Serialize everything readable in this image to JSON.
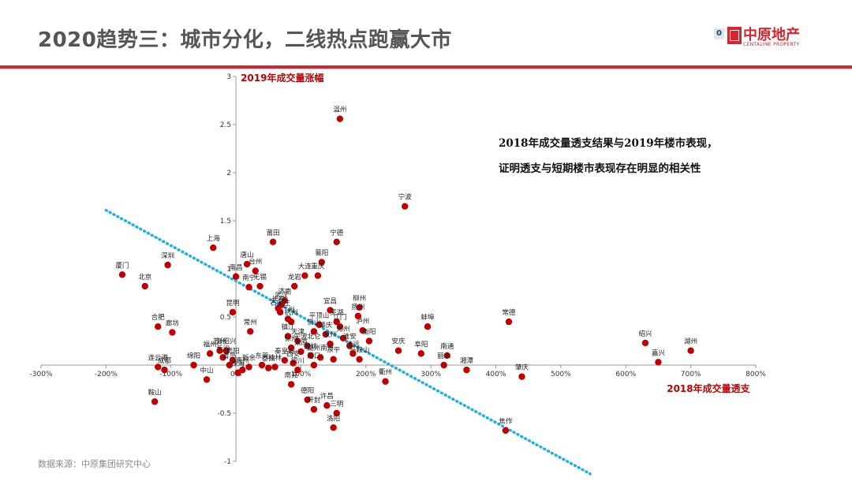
{
  "page": {
    "title": "2020趋势三：城市分化，二线热点跑赢大市",
    "annotation_line1": "2018年成交量透支结果与2019年楼市表现，",
    "annotation_line2": "证明透支与短期楼市表现存在明显的相关性",
    "source": "数据来源：中原集团研究中心"
  },
  "logo": {
    "mark": "0",
    "name_cn": "中原地产",
    "name_en": "CENTALINE PROPERTY"
  },
  "colors": {
    "accent_red": "#d9232d",
    "point": "#c00000",
    "trend": "#1fb0e6",
    "axis_title": "#c00000"
  },
  "chart_data": {
    "type": "scatter",
    "xlabel": "2018年成交量透支",
    "ylabel": "2019年成交量涨幅",
    "x_unit": "%",
    "xlim": [
      -300,
      800
    ],
    "ylim": [
      -1,
      3
    ],
    "x_ticks": [
      -300,
      -200,
      -100,
      0,
      100,
      200,
      300,
      400,
      500,
      600,
      700,
      800
    ],
    "y_ticks": [
      -1,
      -0.5,
      0,
      0.5,
      1,
      1.5,
      2,
      2.5,
      3
    ],
    "x_tick_labels": [
      "-300%",
      "-200%",
      "-100%",
      "0%",
      "100%",
      "200%",
      "300%",
      "400%",
      "500%",
      "600%",
      "700%",
      "800%"
    ],
    "y_tick_labels": [
      "-1",
      "-0.5",
      "0",
      "0.5",
      "1",
      "1.5",
      "2",
      "2.5",
      "3"
    ],
    "trendline": {
      "x": [
        -200,
        545
      ],
      "y": [
        1.61,
        -1.13
      ],
      "style": "dotted"
    },
    "points": [
      {
        "x": 160,
        "y": 2.56,
        "label": "温州"
      },
      {
        "x": 260,
        "y": 1.65,
        "label": "宁波"
      },
      {
        "x": 155,
        "y": 1.28,
        "label": "宁德"
      },
      {
        "x": 57,
        "y": 1.28,
        "label": "莆田"
      },
      {
        "x": 17,
        "y": 1.05,
        "label": "唐山"
      },
      {
        "x": 30,
        "y": 0.98,
        "label": "台州"
      },
      {
        "x": 132,
        "y": 1.07,
        "label": "襄阳"
      },
      {
        "x": 126,
        "y": 0.93,
        "label": "重庆"
      },
      {
        "x": 106,
        "y": 0.93,
        "label": "大连"
      },
      {
        "x": 90,
        "y": 0.82,
        "label": "龙岩"
      },
      {
        "x": 37,
        "y": 0.82,
        "label": "无锡"
      },
      {
        "x": 20,
        "y": 0.81,
        "label": "南宁"
      },
      {
        "x": 0,
        "y": 0.92,
        "label": "南昌"
      },
      {
        "x": -35,
        "y": 1.22,
        "label": "上海"
      },
      {
        "x": -105,
        "y": 1.04,
        "label": "深圳"
      },
      {
        "x": -175,
        "y": 0.94,
        "label": "厦门"
      },
      {
        "x": -140,
        "y": 0.82,
        "label": "北京"
      },
      {
        "x": -5,
        "y": 0.55,
        "label": "昆明"
      },
      {
        "x": -120,
        "y": 0.4,
        "label": "合肥"
      },
      {
        "x": -98,
        "y": 0.34,
        "label": "廊坊"
      },
      {
        "x": 22,
        "y": 0.35,
        "label": "常州"
      },
      {
        "x": 75,
        "y": 0.67,
        "label": "济南"
      },
      {
        "x": 70,
        "y": 0.63,
        "label": "武汉"
      },
      {
        "x": 65,
        "y": 0.59,
        "label": "长春"
      },
      {
        "x": 68,
        "y": 0.55,
        "label": "石家庄"
      },
      {
        "x": 80,
        "y": 0.48,
        "label": "广州"
      },
      {
        "x": 85,
        "y": 0.45,
        "label": "杭州"
      },
      {
        "x": 145,
        "y": 0.57,
        "label": "宜昌"
      },
      {
        "x": 190,
        "y": 0.6,
        "label": "柳州"
      },
      {
        "x": 188,
        "y": 0.51,
        "label": "扬州"
      },
      {
        "x": 155,
        "y": 0.45,
        "label": "芜湖"
      },
      {
        "x": 195,
        "y": 0.36,
        "label": "泸州"
      },
      {
        "x": 128,
        "y": 0.42,
        "label": "平顶山"
      },
      {
        "x": 160,
        "y": 0.4,
        "label": "江门"
      },
      {
        "x": 120,
        "y": 0.35,
        "label": "佛山"
      },
      {
        "x": 138,
        "y": 0.32,
        "label": "肇庆"
      },
      {
        "x": 165,
        "y": 0.28,
        "label": "郑州"
      },
      {
        "x": 145,
        "y": 0.22,
        "label": "泉州"
      },
      {
        "x": 80,
        "y": 0.3,
        "label": "镇江"
      },
      {
        "x": 95,
        "y": 0.25,
        "label": "天津"
      },
      {
        "x": 110,
        "y": 0.2,
        "label": "宁波北仑"
      },
      {
        "x": 85,
        "y": 0.18,
        "label": "徐州"
      },
      {
        "x": 100,
        "y": 0.14,
        "label": "太原"
      },
      {
        "x": 115,
        "y": 0.1,
        "label": "潍坊"
      },
      {
        "x": 130,
        "y": 0.08,
        "label": "湖州南浔"
      },
      {
        "x": 175,
        "y": 0.2,
        "label": "淮安"
      },
      {
        "x": 180,
        "y": 0.12,
        "label": "清远"
      },
      {
        "x": 190,
        "y": 0.06,
        "label": "马鞍山"
      },
      {
        "x": 205,
        "y": 0.25,
        "label": "衡阳"
      },
      {
        "x": 150,
        "y": 0.06,
        "label": "东平"
      },
      {
        "x": 120,
        "y": 0.0,
        "label": "海口"
      },
      {
        "x": 75,
        "y": 0.05,
        "label": "秦皇岛"
      },
      {
        "x": 60,
        "y": -0.02,
        "label": "桂林"
      },
      {
        "x": 40,
        "y": 0.0,
        "label": "东莞"
      },
      {
        "x": 88,
        "y": 0.02,
        "label": "西安"
      },
      {
        "x": 95,
        "y": -0.05,
        "label": "银川"
      },
      {
        "x": -15,
        "y": 0.15,
        "label": "浙绍兴"
      },
      {
        "x": -25,
        "y": 0.15,
        "label": "苏州"
      },
      {
        "x": -40,
        "y": 0.12,
        "label": "福州"
      },
      {
        "x": -20,
        "y": 0.08,
        "label": "长沙"
      },
      {
        "x": -5,
        "y": 0.05,
        "label": "贵阳"
      },
      {
        "x": -10,
        "y": 0.0,
        "label": "青岛"
      },
      {
        "x": 3,
        "y": -0.08,
        "label": "珠海"
      },
      {
        "x": 10,
        "y": -0.05,
        "label": "惠州"
      },
      {
        "x": 20,
        "y": -0.02,
        "label": "新余"
      },
      {
        "x": 50,
        "y": -0.03,
        "label": "泰州"
      },
      {
        "x": -65,
        "y": 0.0,
        "label": "绵阳"
      },
      {
        "x": -110,
        "y": -0.05,
        "label": "成都"
      },
      {
        "x": -120,
        "y": -0.02,
        "label": "连云港"
      },
      {
        "x": -45,
        "y": -0.15,
        "label": "中山"
      },
      {
        "x": -125,
        "y": -0.38,
        "label": "鞍山"
      },
      {
        "x": 85,
        "y": -0.2,
        "label": "南充"
      },
      {
        "x": 110,
        "y": -0.36,
        "label": "德阳"
      },
      {
        "x": 120,
        "y": -0.46,
        "label": "开封"
      },
      {
        "x": 140,
        "y": -0.42,
        "label": "许昌"
      },
      {
        "x": 155,
        "y": -0.5,
        "label": "三明"
      },
      {
        "x": 150,
        "y": -0.65,
        "label": "洛阳"
      },
      {
        "x": 230,
        "y": -0.17,
        "label": "衢州"
      },
      {
        "x": 250,
        "y": 0.15,
        "label": "安庆"
      },
      {
        "x": 285,
        "y": 0.12,
        "label": "阜阳"
      },
      {
        "x": 295,
        "y": 0.4,
        "label": "蚌埠"
      },
      {
        "x": 325,
        "y": 0.1,
        "label": "南通"
      },
      {
        "x": 320,
        "y": 0.0,
        "label": "丽水"
      },
      {
        "x": 355,
        "y": -0.05,
        "label": "湘潭"
      },
      {
        "x": 420,
        "y": 0.45,
        "label": "常德"
      },
      {
        "x": 440,
        "y": -0.12,
        "label": "肇庆"
      },
      {
        "x": 415,
        "y": -0.68,
        "label": "焦作"
      },
      {
        "x": 630,
        "y": 0.23,
        "label": "绍兴"
      },
      {
        "x": 650,
        "y": 0.03,
        "label": "嘉兴"
      },
      {
        "x": 700,
        "y": 0.15,
        "label": "湖州"
      }
    ]
  }
}
